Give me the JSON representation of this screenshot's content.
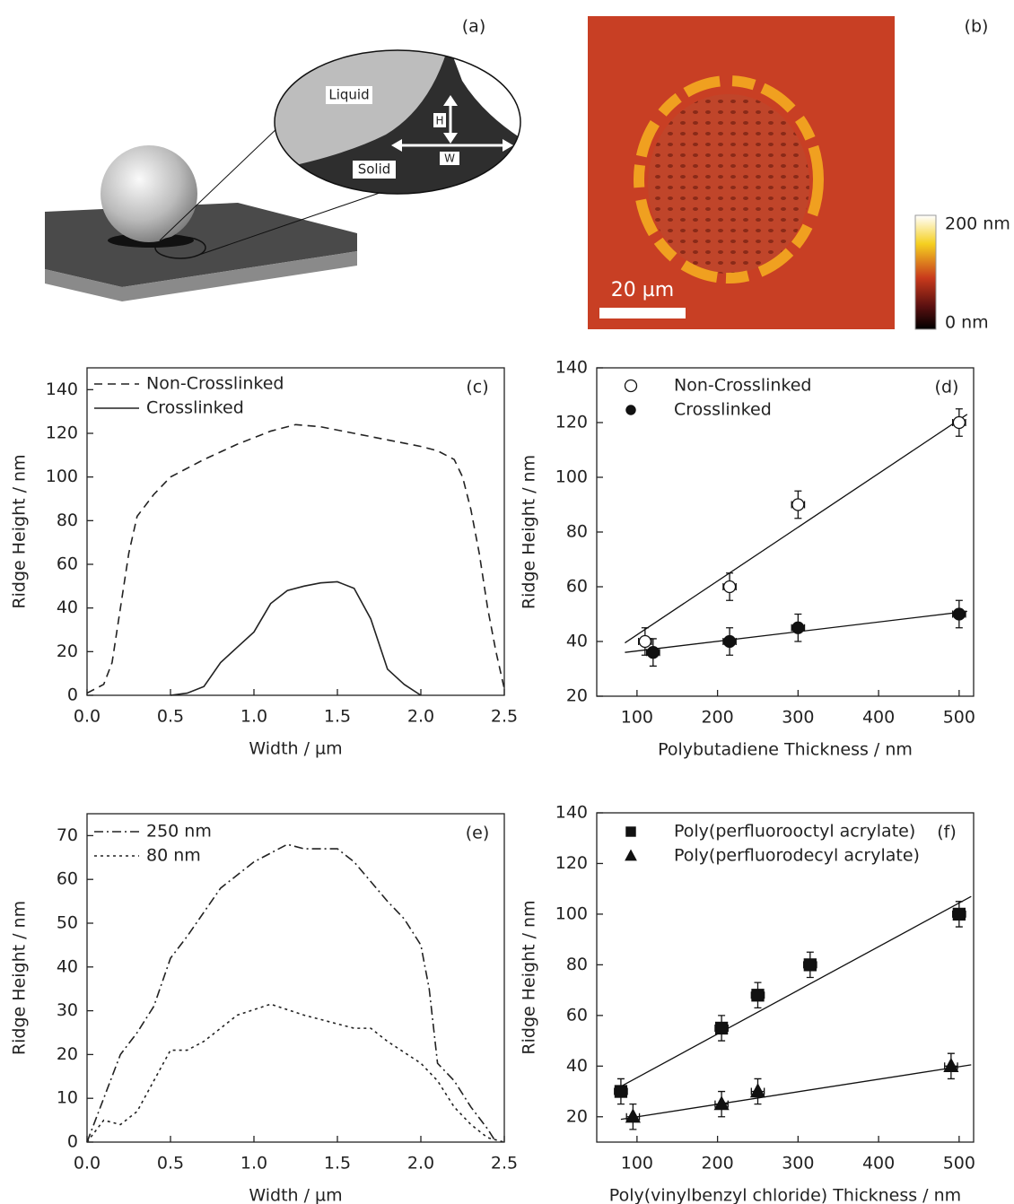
{
  "diagram": {
    "label": "(a)",
    "liquid": "Liquid",
    "solid": "Solid",
    "h": "H",
    "w": "W"
  },
  "image": {
    "label": "(b)",
    "scale_bar": "20 µm",
    "colorbar_max": "200 nm",
    "colorbar_min": "0 nm"
  },
  "chart_data": [
    {
      "type": "line",
      "label": "(c)",
      "xlabel": "Width / µm",
      "ylabel": "Ridge Height / nm",
      "xlim": [
        0,
        2.5
      ],
      "ylim": [
        0,
        150
      ],
      "xticks": [
        {
          "value": 0,
          "label": "0.0"
        },
        {
          "value": 0.5,
          "label": "0.5"
        },
        {
          "value": 1,
          "label": "1.0"
        },
        {
          "value": 1.5,
          "label": "1.5"
        },
        {
          "value": 2,
          "label": "2.0"
        },
        {
          "value": 2.5,
          "label": "2.5"
        }
      ],
      "yticks": [
        0,
        20,
        40,
        60,
        80,
        100,
        120,
        140
      ],
      "series": [
        {
          "name": "Non-Crosslinked",
          "color": "#222",
          "dash": "dashed",
          "x": [
            0,
            0.1,
            0.15,
            0.2,
            0.25,
            0.3,
            0.4,
            0.5,
            0.7,
            0.9,
            1.1,
            1.25,
            1.4,
            1.6,
            1.8,
            2.0,
            2.1,
            2.2,
            2.25,
            2.3,
            2.35,
            2.4,
            2.45,
            2.5
          ],
          "values": [
            1,
            5,
            15,
            40,
            65,
            82,
            92,
            100,
            108,
            115,
            121,
            124,
            123,
            120,
            117,
            114,
            112,
            108,
            100,
            85,
            65,
            40,
            20,
            3
          ]
        },
        {
          "name": "Crosslinked",
          "color": "#222",
          "dash": "solid",
          "x": [
            0.5,
            0.6,
            0.7,
            0.8,
            0.9,
            1.0,
            1.1,
            1.2,
            1.3,
            1.4,
            1.5,
            1.6,
            1.7,
            1.8,
            1.9,
            2.0
          ],
          "values": [
            0,
            1,
            4,
            15,
            22,
            29,
            42,
            48,
            50,
            51.5,
            52,
            49,
            35,
            12,
            5,
            0
          ]
        }
      ]
    },
    {
      "type": "scatter",
      "label": "(d)",
      "xlabel": "Polybutadiene Thickness / nm",
      "ylabel": "Ridge Height / nm",
      "xlim": [
        50,
        518
      ],
      "ylim": [
        20,
        140
      ],
      "xticks": [
        100,
        200,
        300,
        400,
        500
      ],
      "yticks": [
        20,
        40,
        60,
        80,
        100,
        120,
        140
      ],
      "series": [
        {
          "name": "Non-Crosslinked",
          "color": "#111",
          "marker": "open-circle",
          "x": [
            110,
            215,
            300,
            500
          ],
          "values": [
            40,
            60,
            90,
            120
          ],
          "xerr": [
            8,
            8,
            8,
            8
          ],
          "yerr": [
            5,
            5,
            5,
            5
          ],
          "fit": {
            "x": [
              85,
              510
            ],
            "values": [
              39.5,
              123
            ]
          }
        },
        {
          "name": "Crosslinked",
          "color": "#111",
          "marker": "filled-circle",
          "x": [
            120,
            215,
            300,
            500
          ],
          "values": [
            36,
            40,
            45,
            50
          ],
          "xerr": [
            8,
            8,
            8,
            8
          ],
          "yerr": [
            5,
            5,
            5,
            5
          ],
          "fit": {
            "x": [
              85,
              510
            ],
            "values": [
              36,
              51
            ]
          }
        }
      ]
    },
    {
      "type": "line",
      "label": "(e)",
      "xlabel": "Width / µm",
      "ylabel": "Ridge Height / nm",
      "xlim": [
        0,
        2.5
      ],
      "ylim": [
        0,
        75
      ],
      "xticks": [
        {
          "value": 0,
          "label": "0.0"
        },
        {
          "value": 0.5,
          "label": "0.5"
        },
        {
          "value": 1,
          "label": "1.0"
        },
        {
          "value": 1.5,
          "label": "1.5"
        },
        {
          "value": 2,
          "label": "2.0"
        },
        {
          "value": 2.5,
          "label": "2.5"
        }
      ],
      "yticks": [
        0,
        10,
        20,
        30,
        40,
        50,
        60,
        70
      ],
      "series": [
        {
          "name": "250 nm",
          "color": "#222",
          "dash": "dashdot",
          "x": [
            0,
            0.1,
            0.2,
            0.3,
            0.4,
            0.5,
            0.6,
            0.8,
            1.0,
            1.1,
            1.2,
            1.3,
            1.5,
            1.6,
            1.8,
            1.9,
            2.0,
            2.05,
            2.1,
            2.2,
            2.3,
            2.4,
            2.45
          ],
          "values": [
            0,
            10,
            20,
            25,
            31,
            42,
            47,
            58,
            64,
            66,
            68,
            67,
            67,
            64,
            55,
            51,
            45,
            35,
            18,
            14,
            8,
            3,
            0
          ]
        },
        {
          "name": "80 nm",
          "color": "#222",
          "dash": "dotted",
          "x": [
            0,
            0.1,
            0.2,
            0.3,
            0.4,
            0.5,
            0.6,
            0.7,
            0.9,
            1.1,
            1.3,
            1.5,
            1.6,
            1.7,
            1.8,
            2.0,
            2.1,
            2.2,
            2.3,
            2.4,
            2.5
          ],
          "values": [
            0,
            5,
            4,
            7,
            14,
            21,
            21,
            23,
            29,
            31.5,
            29,
            27,
            26,
            26,
            23,
            18,
            14,
            8,
            4,
            1,
            0
          ]
        }
      ]
    },
    {
      "type": "scatter",
      "label": "(f)",
      "xlabel": "Poly(vinylbenzyl chloride) Thickness / nm",
      "ylabel": "Ridge Height / nm",
      "xlim": [
        50,
        518
      ],
      "ylim": [
        10,
        140
      ],
      "xticks": [
        100,
        200,
        300,
        400,
        500
      ],
      "yticks": [
        20,
        40,
        60,
        80,
        100,
        120,
        140
      ],
      "series": [
        {
          "name": "Poly(perfluorooctyl acrylate)",
          "color": "#111",
          "marker": "square",
          "x": [
            80,
            205,
            250,
            315,
            500
          ],
          "values": [
            30,
            55,
            68,
            80,
            100
          ],
          "xerr": [
            8,
            8,
            8,
            8,
            8
          ],
          "yerr": [
            5,
            5,
            5,
            5,
            5
          ],
          "fit": {
            "x": [
              80,
              515
            ],
            "values": [
              32,
              107
            ]
          }
        },
        {
          "name": "Poly(perfluorodecyl acrylate)",
          "color": "#111",
          "marker": "triangle",
          "x": [
            95,
            205,
            250,
            490
          ],
          "values": [
            20,
            25,
            30,
            40
          ],
          "xerr": [
            8,
            8,
            8,
            8
          ],
          "yerr": [
            5,
            5,
            5,
            5
          ],
          "fit": {
            "x": [
              80,
              515
            ],
            "values": [
              19,
              40.5
            ]
          }
        }
      ]
    }
  ]
}
